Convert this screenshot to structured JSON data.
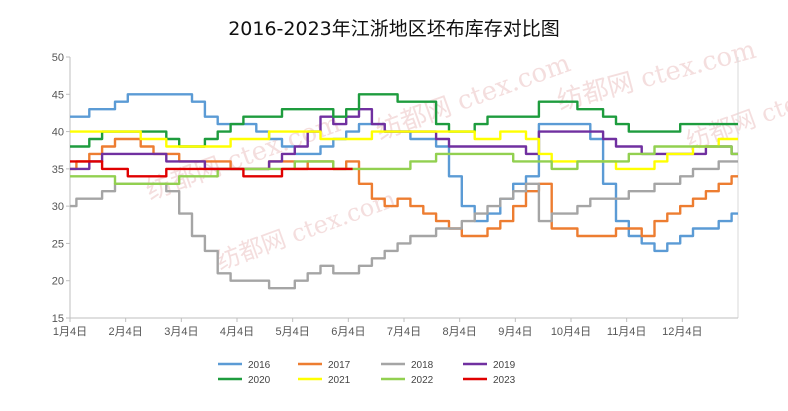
{
  "chart_data": {
    "type": "line",
    "title": "2016-2023年江浙地区坯布库存对比图",
    "xlabel": "",
    "ylabel": "",
    "x_ticks": [
      "1月4日",
      "2月4日",
      "3月4日",
      "4月4日",
      "5月4日",
      "6月4日",
      "7月4日",
      "8月4日",
      "9月4日",
      "10月4日",
      "11月4日",
      "12月4日"
    ],
    "y_ticks": [
      15,
      20,
      25,
      30,
      35,
      40,
      45,
      50
    ],
    "ylim": [
      15,
      50
    ],
    "x_unit": "week",
    "xlim": [
      0,
      52
    ],
    "grid": false,
    "legend_position": "bottom",
    "watermark": "纺都网 ctex.com",
    "series": [
      {
        "name": "2016",
        "color": "#5b9bd5",
        "x": [
          0,
          1,
          2,
          3,
          4,
          5,
          6,
          7,
          8,
          9,
          10,
          11,
          12,
          13,
          14,
          15,
          16,
          17,
          18,
          19,
          20,
          21,
          22,
          23,
          24,
          25,
          26,
          27,
          28,
          29,
          30,
          31,
          32,
          33,
          34,
          35,
          36,
          37,
          38,
          39,
          40,
          41,
          42,
          43,
          44,
          45,
          46,
          47,
          48,
          49,
          50,
          51,
          52
        ],
        "values": [
          42,
          42,
          43,
          43,
          44,
          45,
          45,
          45,
          45,
          45,
          44,
          42,
          41,
          41,
          41,
          40,
          39,
          38,
          37,
          37,
          38,
          39,
          40,
          41,
          41,
          40,
          40,
          39,
          39,
          38,
          34,
          30,
          28,
          29,
          31,
          33,
          34,
          41,
          41,
          41,
          41,
          39,
          33,
          28,
          26,
          25,
          24,
          25,
          26,
          27,
          27,
          28,
          29
        ]
      },
      {
        "name": "2017",
        "color": "#ed7d31",
        "x": [
          0,
          1,
          2,
          3,
          4,
          5,
          6,
          7,
          8,
          9,
          10,
          11,
          12,
          13,
          14,
          15,
          16,
          17,
          18,
          19,
          20,
          21,
          22,
          23,
          24,
          25,
          26,
          27,
          28,
          29,
          30,
          31,
          32,
          33,
          34,
          35,
          36,
          37,
          38,
          39,
          40,
          41,
          42,
          43,
          44,
          45,
          46,
          47,
          48,
          49,
          50,
          51,
          52
        ],
        "values": [
          35,
          36,
          37,
          38,
          39,
          39,
          38,
          37,
          37,
          36,
          36,
          36,
          36,
          35,
          35,
          35,
          36,
          36,
          35,
          36,
          36,
          35,
          36,
          33,
          31,
          30,
          31,
          30,
          29,
          28,
          27,
          26,
          26,
          27,
          28,
          30,
          32,
          33,
          27,
          27,
          26,
          26,
          26,
          27,
          27,
          26,
          28,
          29,
          30,
          31,
          32,
          33,
          34
        ]
      },
      {
        "name": "2018",
        "color": "#a5a5a5",
        "x": [
          0,
          1,
          2,
          3,
          4,
          5,
          6,
          7,
          8,
          9,
          10,
          11,
          12,
          13,
          14,
          15,
          16,
          17,
          18,
          19,
          20,
          21,
          22,
          23,
          24,
          25,
          26,
          27,
          28,
          29,
          30,
          31,
          32,
          33,
          34,
          35,
          36,
          37,
          38,
          39,
          40,
          41,
          42,
          43,
          44,
          45,
          46,
          47,
          48,
          49,
          50,
          51,
          52
        ],
        "values": [
          30,
          31,
          31,
          32,
          33,
          33,
          33,
          33,
          32,
          29,
          26,
          24,
          21,
          20,
          20,
          20,
          19,
          19,
          20,
          21,
          22,
          21,
          21,
          22,
          23,
          24,
          25,
          26,
          26,
          27,
          27,
          28,
          29,
          30,
          31,
          32,
          33,
          28,
          29,
          29,
          30,
          31,
          31,
          31,
          32,
          32,
          33,
          33,
          34,
          35,
          35,
          36,
          36
        ]
      },
      {
        "name": "2019",
        "color": "#7030a0",
        "x": [
          0,
          1,
          2,
          3,
          4,
          5,
          6,
          7,
          8,
          9,
          10,
          11,
          12,
          13,
          14,
          15,
          16,
          17,
          18,
          19,
          20,
          21,
          22,
          23,
          24,
          25,
          26,
          27,
          28,
          29,
          30,
          31,
          32,
          33,
          34,
          35,
          36,
          37,
          38,
          39,
          40,
          41,
          42,
          43,
          44,
          45,
          46,
          47,
          48,
          49,
          50,
          51,
          52
        ],
        "values": [
          35,
          35,
          36,
          37,
          37,
          37,
          37,
          37,
          36,
          36,
          36,
          35,
          35,
          35,
          35,
          35,
          36,
          37,
          38,
          40,
          42,
          41,
          42,
          43,
          41,
          40,
          40,
          40,
          40,
          39,
          38,
          38,
          38,
          38,
          38,
          38,
          37,
          40,
          40,
          40,
          40,
          40,
          39,
          38,
          38,
          37,
          37,
          37,
          37,
          37,
          38,
          38,
          37
        ]
      },
      {
        "name": "2020",
        "color": "#1e9c3e",
        "x": [
          0,
          1,
          2,
          3,
          4,
          5,
          6,
          7,
          8,
          9,
          10,
          11,
          12,
          13,
          14,
          15,
          16,
          17,
          18,
          19,
          20,
          21,
          22,
          23,
          24,
          25,
          26,
          27,
          28,
          29,
          30,
          31,
          32,
          33,
          34,
          35,
          36,
          37,
          38,
          39,
          40,
          41,
          42,
          43,
          44,
          45,
          46,
          47,
          48,
          49,
          50,
          51,
          52
        ],
        "values": [
          38,
          38,
          39,
          40,
          40,
          40,
          40,
          40,
          39,
          38,
          38,
          39,
          40,
          41,
          42,
          42,
          42,
          43,
          43,
          43,
          43,
          42,
          43,
          45,
          45,
          45,
          44,
          44,
          44,
          41,
          40,
          40,
          41,
          42,
          42,
          42,
          42,
          44,
          44,
          44,
          43,
          43,
          42,
          41,
          40,
          40,
          40,
          40,
          41,
          41,
          41,
          41,
          41
        ]
      },
      {
        "name": "2021",
        "color": "#ffff00",
        "x": [
          0,
          1,
          2,
          3,
          4,
          5,
          6,
          7,
          8,
          9,
          10,
          11,
          12,
          13,
          14,
          15,
          16,
          17,
          18,
          19,
          20,
          21,
          22,
          23,
          24,
          25,
          26,
          27,
          28,
          29,
          30,
          31,
          32,
          33,
          34,
          35,
          36,
          37,
          38,
          39,
          40,
          41,
          42,
          43,
          44,
          45,
          46,
          47,
          48,
          49,
          50,
          51,
          52
        ],
        "values": [
          40,
          40,
          40,
          40,
          40,
          40,
          39,
          39,
          38,
          38,
          38,
          38,
          38,
          39,
          39,
          39,
          40,
          40,
          40,
          40,
          39,
          39,
          39,
          39,
          40,
          40,
          40,
          40,
          40,
          40,
          40,
          40,
          39,
          39,
          40,
          40,
          39,
          37,
          36,
          36,
          36,
          36,
          36,
          35,
          35,
          35,
          36,
          37,
          37,
          38,
          38,
          39,
          39
        ]
      },
      {
        "name": "2022",
        "color": "#92d050",
        "x": [
          0,
          1,
          2,
          3,
          4,
          5,
          6,
          7,
          8,
          9,
          10,
          11,
          12,
          13,
          14,
          15,
          16,
          17,
          18,
          19,
          20,
          21,
          22,
          23,
          24,
          25,
          26,
          27,
          28,
          29,
          30,
          31,
          32,
          33,
          34,
          35,
          36,
          37,
          38,
          39,
          40,
          41,
          42,
          43,
          44,
          45,
          46,
          47,
          48,
          49,
          50,
          51,
          52
        ],
        "values": [
          34,
          34,
          34,
          34,
          33,
          33,
          33,
          33,
          33,
          34,
          34,
          34,
          35,
          35,
          35,
          35,
          35,
          35,
          36,
          36,
          36,
          35,
          35,
          35,
          35,
          35,
          35,
          36,
          36,
          37,
          37,
          37,
          37,
          37,
          37,
          36,
          36,
          36,
          35,
          35,
          36,
          36,
          36,
          36,
          37,
          37,
          38,
          38,
          38,
          38,
          38,
          38,
          37
        ]
      },
      {
        "name": "2023",
        "color": "#e00000",
        "x": [
          0,
          1,
          2,
          3,
          4,
          5,
          6,
          7,
          8,
          9,
          10,
          11,
          12,
          13,
          14,
          15,
          16,
          17,
          18,
          19,
          20,
          21,
          22
        ],
        "values": [
          36,
          36,
          36,
          35,
          35,
          34,
          34,
          34,
          35,
          35,
          35,
          35,
          35,
          35,
          34,
          34,
          34,
          35,
          35,
          35,
          35,
          35,
          35
        ]
      }
    ]
  }
}
